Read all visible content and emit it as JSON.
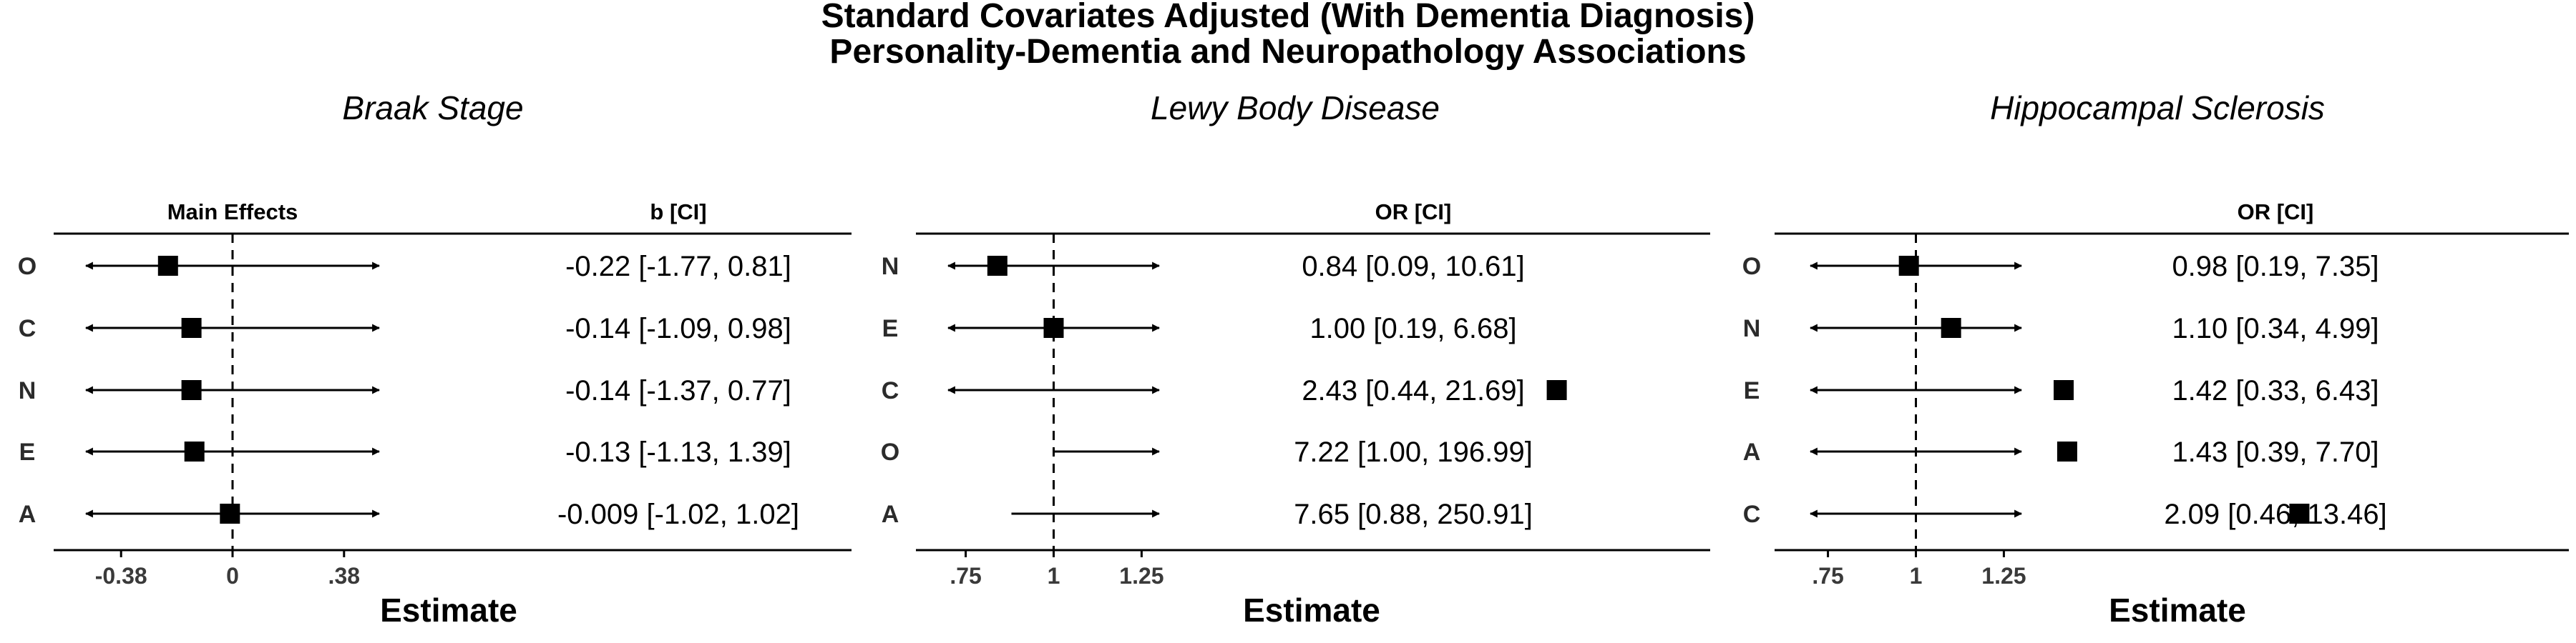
{
  "title_line1": "Standard Covariates Adjusted (With Dementia Diagnosis)",
  "title_line2": "Personality-Dementia and Neuropathology Associations",
  "chart_data": [
    {
      "type": "forest",
      "title": "Braak Stage",
      "xlabel": "Estimate",
      "left_header": "Main Effects",
      "ci_header": "b [CI]",
      "xlim": [
        -0.5,
        0.5
      ],
      "reference_line": 0,
      "ticks": [
        {
          "value": -0.38,
          "label": "-0.38"
        },
        {
          "value": 0,
          "label": "0"
        },
        {
          "value": 0.38,
          "label": ".38"
        }
      ],
      "rows": [
        {
          "label": "O",
          "estimate": -0.22,
          "ci_text": "-0.22 [-1.77, 0.81]",
          "arrow_left": true,
          "arrow_right": true
        },
        {
          "label": "C",
          "estimate": -0.14,
          "ci_text": "-0.14 [-1.09, 0.98]",
          "arrow_left": true,
          "arrow_right": true
        },
        {
          "label": "N",
          "estimate": -0.14,
          "ci_text": "-0.14 [-1.37, 0.77]",
          "arrow_left": true,
          "arrow_right": true
        },
        {
          "label": "E",
          "estimate": -0.13,
          "ci_text": "-0.13 [-1.13, 1.39]",
          "arrow_left": true,
          "arrow_right": true
        },
        {
          "label": "A",
          "estimate": -0.009,
          "ci_text": "-0.009 [-1.02, 1.02]",
          "arrow_left": true,
          "arrow_right": true
        }
      ]
    },
    {
      "type": "forest",
      "title": "Lewy Body Disease",
      "xlabel": "Estimate",
      "left_header": "",
      "ci_header": "OR [CI]",
      "xlim": [
        0.7,
        1.3
      ],
      "reference_line": 1,
      "ticks": [
        {
          "value": 0.75,
          "label": ".75"
        },
        {
          "value": 1,
          "label": "1"
        },
        {
          "value": 1.25,
          "label": "1.25"
        }
      ],
      "rows": [
        {
          "label": "N",
          "estimate": 0.84,
          "ci_text": "0.84 [0.09, 10.61]",
          "arrow_left": true,
          "arrow_right": true
        },
        {
          "label": "E",
          "estimate": 1.0,
          "ci_text": "1.00 [0.19, 6.68]",
          "arrow_left": true,
          "arrow_right": true
        },
        {
          "label": "C",
          "estimate": 2.43,
          "ci_text": "2.43 [0.44, 21.69]",
          "arrow_left": true,
          "arrow_right": true
        },
        {
          "label": "O",
          "estimate": 7.22,
          "ci_text": "7.22 [1.00, 196.99]",
          "ci_low": 1.0,
          "arrow_left": false,
          "arrow_right": true
        },
        {
          "label": "A",
          "estimate": 7.65,
          "ci_text": "7.65 [0.88, 250.91]",
          "ci_low": 0.88,
          "arrow_left": false,
          "arrow_right": true
        }
      ]
    },
    {
      "type": "forest",
      "title": "Hippocampal Sclerosis",
      "xlabel": "Estimate",
      "left_header": "",
      "ci_header": "OR [CI]",
      "xlim": [
        0.7,
        1.3
      ],
      "reference_line": 1,
      "ticks": [
        {
          "value": 0.75,
          "label": ".75"
        },
        {
          "value": 1,
          "label": "1"
        },
        {
          "value": 1.25,
          "label": "1.25"
        }
      ],
      "rows": [
        {
          "label": "O",
          "estimate": 0.98,
          "ci_text": "0.98 [0.19, 7.35]",
          "arrow_left": true,
          "arrow_right": true
        },
        {
          "label": "N",
          "estimate": 1.1,
          "ci_text": "1.10 [0.34, 4.99]",
          "arrow_left": true,
          "arrow_right": true
        },
        {
          "label": "E",
          "estimate": 1.42,
          "ci_text": "1.42 [0.33, 6.43]",
          "arrow_left": true,
          "arrow_right": true
        },
        {
          "label": "A",
          "estimate": 1.43,
          "ci_text": "1.43 [0.39, 7.70]",
          "arrow_left": true,
          "arrow_right": true
        },
        {
          "label": "C",
          "estimate": 2.09,
          "ci_text": "2.09 [0.46, 13.46]",
          "arrow_left": true,
          "arrow_right": true
        }
      ]
    }
  ]
}
